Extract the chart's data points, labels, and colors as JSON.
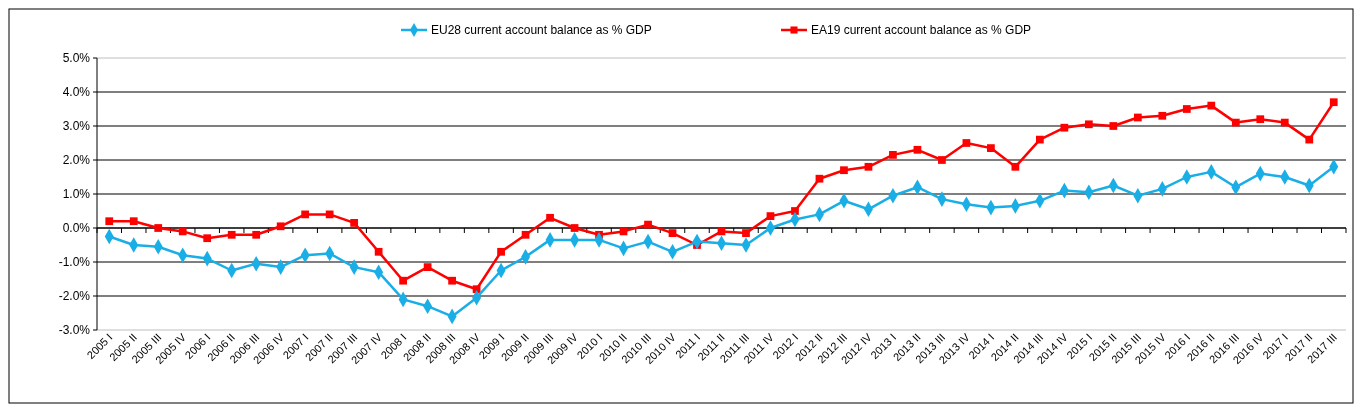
{
  "chart_data": {
    "type": "line",
    "categories": [
      "2005 I",
      "2005 II",
      "2005 III",
      "2005 IV",
      "2006 I",
      "2006 II",
      "2006 III",
      "2006 IV",
      "2007 I",
      "2007 II",
      "2007 III",
      "2007 IV",
      "2008 I",
      "2008 II",
      "2008 III",
      "2008 IV",
      "2009 I",
      "2009 II",
      "2009 III",
      "2009 IV",
      "2010 I",
      "2010 II",
      "2010 III",
      "2010 IV",
      "2011 I",
      "2011 II",
      "2011 III",
      "2011 IV",
      "2012 I",
      "2012 II",
      "2012 III",
      "2012 IV",
      "2013 I",
      "2013 II",
      "2013 III",
      "2013 IV",
      "2014 I",
      "2014 II",
      "2014 III",
      "2014 IV",
      "2015 I",
      "2015 II",
      "2015 III",
      "2015 IV",
      "2016 I",
      "2016 II",
      "2016 III",
      "2016 IV",
      "2017 I",
      "2017 II",
      "2017 III"
    ],
    "series": [
      {
        "name": "EU28 current account balance as % GDP",
        "color": "#1aaee6",
        "marker": "diamond",
        "values": [
          -0.25,
          -0.5,
          -0.55,
          -0.8,
          -0.9,
          -1.25,
          -1.05,
          -1.15,
          -0.8,
          -0.75,
          -1.15,
          -1.3,
          -2.1,
          -2.3,
          -2.6,
          -2.05,
          -1.25,
          -0.85,
          -0.35,
          -0.35,
          -0.35,
          -0.6,
          -0.4,
          -0.7,
          -0.4,
          -0.45,
          -0.5,
          0.0,
          0.25,
          0.4,
          0.8,
          0.55,
          0.95,
          1.2,
          0.85,
          0.7,
          0.6,
          0.65,
          0.8,
          1.1,
          1.05,
          1.25,
          0.95,
          1.15,
          1.5,
          1.65,
          1.2,
          1.6,
          1.5,
          1.25,
          1.8
        ]
      },
      {
        "name": "EA19 current account balance as % GDP",
        "color": "#ff0000",
        "marker": "square",
        "values": [
          0.2,
          0.2,
          0.0,
          -0.1,
          -0.3,
          -0.2,
          -0.2,
          0.05,
          0.4,
          0.4,
          0.15,
          -0.7,
          -1.55,
          -1.15,
          -1.55,
          -1.8,
          -0.7,
          -0.2,
          0.3,
          0.0,
          -0.2,
          -0.1,
          0.1,
          -0.15,
          -0.5,
          -0.1,
          -0.15,
          0.35,
          0.5,
          1.45,
          1.7,
          1.8,
          2.15,
          2.3,
          2.0,
          2.5,
          2.35,
          1.8,
          2.6,
          2.95,
          3.05,
          3.0,
          3.25,
          3.3,
          3.5,
          3.6,
          3.1,
          3.2,
          3.1,
          2.6,
          3.7
        ]
      }
    ],
    "ylim": [
      -3,
      5
    ],
    "yticks": [
      {
        "value": -3,
        "label": "-3.0%"
      },
      {
        "value": -2,
        "label": "-2.0%"
      },
      {
        "value": -1,
        "label": "-1.0%"
      },
      {
        "value": 0,
        "label": "0.0%"
      },
      {
        "value": 1,
        "label": "1.0%"
      },
      {
        "value": 2,
        "label": "2.0%"
      },
      {
        "value": 3,
        "label": "3.0%"
      },
      {
        "value": 4,
        "label": "4.0%"
      },
      {
        "value": 5,
        "label": "5.0%"
      }
    ],
    "grid": "y",
    "legend": "top",
    "line_style": "solid"
  }
}
